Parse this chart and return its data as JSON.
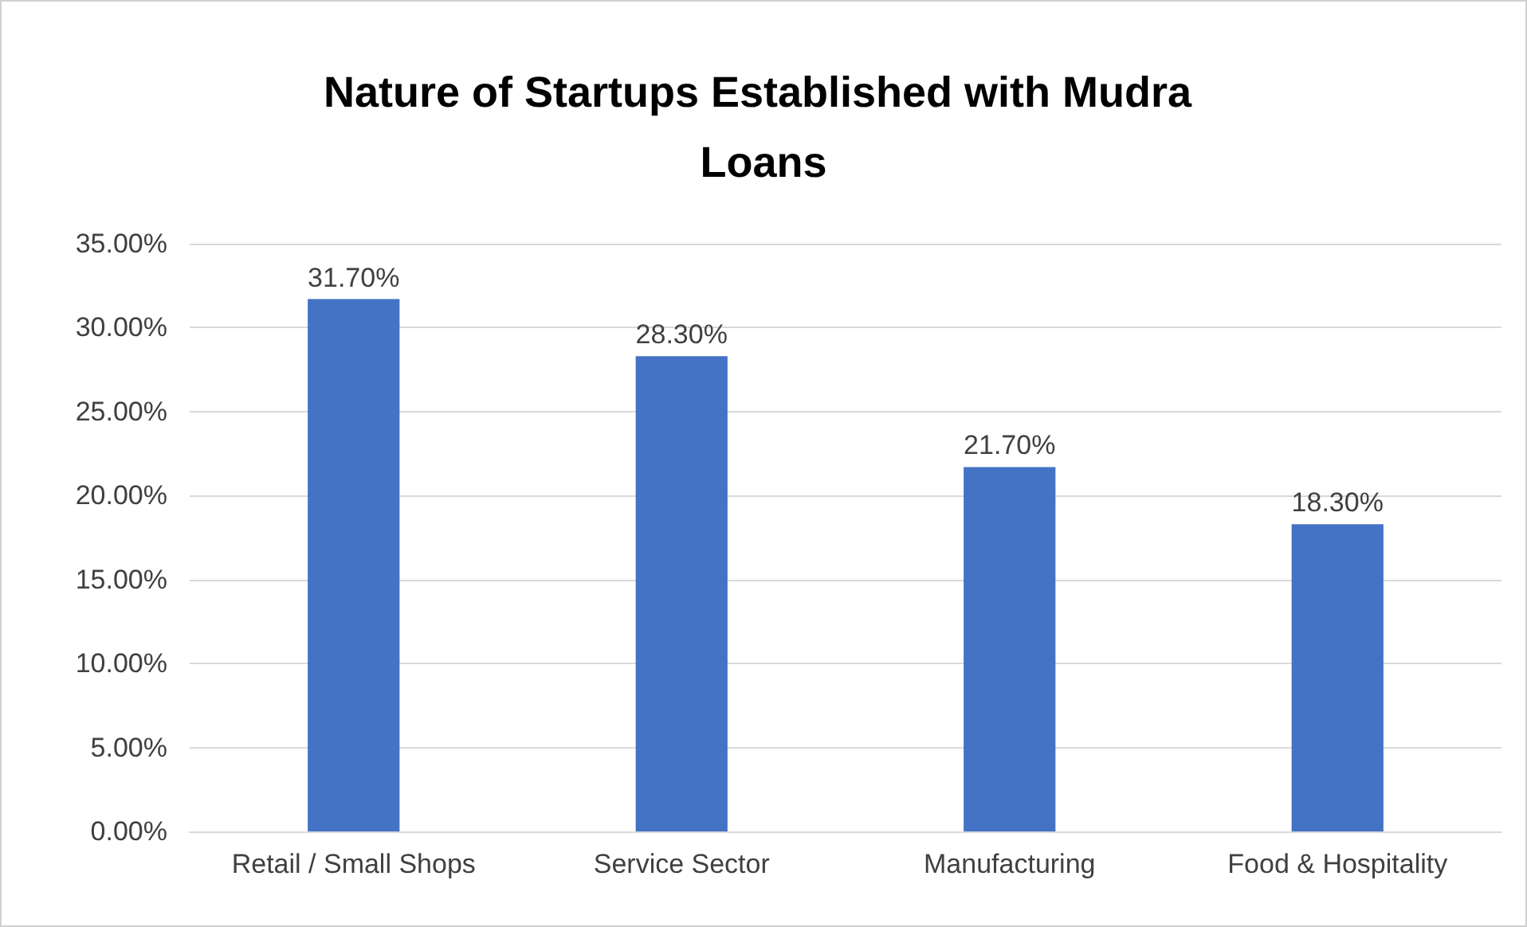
{
  "chart_data": {
    "type": "bar",
    "title": "Nature of Startups Established with Mudra Loans",
    "categories": [
      "Retail / Small Shops",
      "Service Sector",
      "Manufacturing",
      "Food & Hospitality"
    ],
    "values": [
      31.7,
      28.3,
      21.7,
      18.3
    ],
    "value_labels": [
      "31.70%",
      "28.30%",
      "21.70%",
      "18.30%"
    ],
    "color": "#4472c4",
    "ylim": [
      0,
      35
    ],
    "yticks": [
      {
        "value": 0,
        "label": "0.00%"
      },
      {
        "value": 5,
        "label": "5.00%"
      },
      {
        "value": 10,
        "label": "10.00%"
      },
      {
        "value": 15,
        "label": "15.00%"
      },
      {
        "value": 20,
        "label": "20.00%"
      },
      {
        "value": 25,
        "label": "25.00%"
      },
      {
        "value": 30,
        "label": "30.00%"
      },
      {
        "value": 35,
        "label": "35.00%"
      }
    ],
    "grid": "y"
  }
}
